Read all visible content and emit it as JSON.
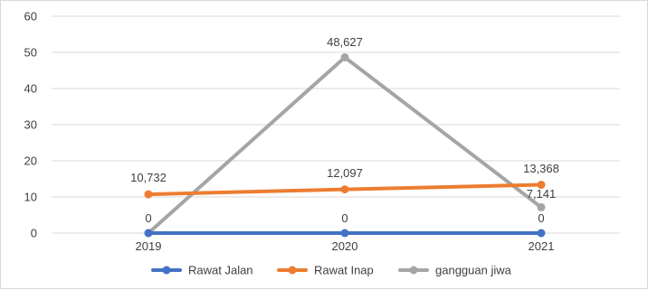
{
  "chart_data": {
    "type": "line",
    "categories": [
      "2019",
      "2020",
      "2021"
    ],
    "ylim": [
      0,
      60
    ],
    "yticks": [
      0,
      10,
      20,
      30,
      40,
      50,
      60
    ],
    "ytick_labels": [
      "0",
      "10",
      "20",
      "30",
      "40",
      "50",
      "60"
    ],
    "grid": true,
    "legend_position": "bottom",
    "series": [
      {
        "name": "Rawat Jalan",
        "values": [
          0,
          0,
          0
        ],
        "data_labels": [
          "0",
          "0",
          "0"
        ],
        "color": "#4472C4"
      },
      {
        "name": "Rawat Inap",
        "values": [
          10.732,
          12.097,
          13.368
        ],
        "data_labels": [
          "10,732",
          "12,097",
          "13,368"
        ],
        "color": "#ED7D31"
      },
      {
        "name": "gangguan jiwa",
        "values": [
          0,
          48.627,
          7.141
        ],
        "data_labels": [
          "",
          "48,627",
          "7,141"
        ],
        "color": "#A5A5A5"
      }
    ]
  }
}
